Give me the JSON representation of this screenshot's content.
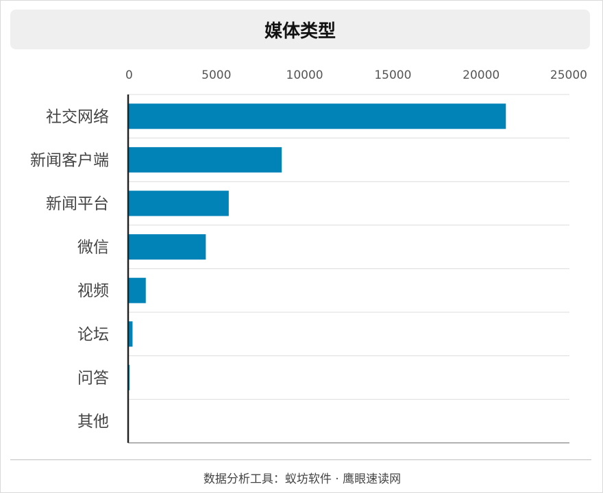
{
  "title": "媒体类型",
  "footer": "数据分析工具：蚁坊软件 · 鹰眼速读网",
  "chart_data": {
    "type": "bar",
    "orientation": "horizontal",
    "categories": [
      "社交网络",
      "新闻客户端",
      "新闻平台",
      "微信",
      "视频",
      "论坛",
      "问答",
      "其他"
    ],
    "series": [
      {
        "values": [
          21400,
          8700,
          5700,
          4400,
          1000,
          250,
          80,
          10
        ]
      }
    ],
    "xlim": [
      0,
      25000
    ],
    "xticks": [
      0,
      5000,
      10000,
      15000,
      20000,
      25000
    ],
    "axis_position": "top",
    "grid": true,
    "bar_color": "#0283b8"
  }
}
